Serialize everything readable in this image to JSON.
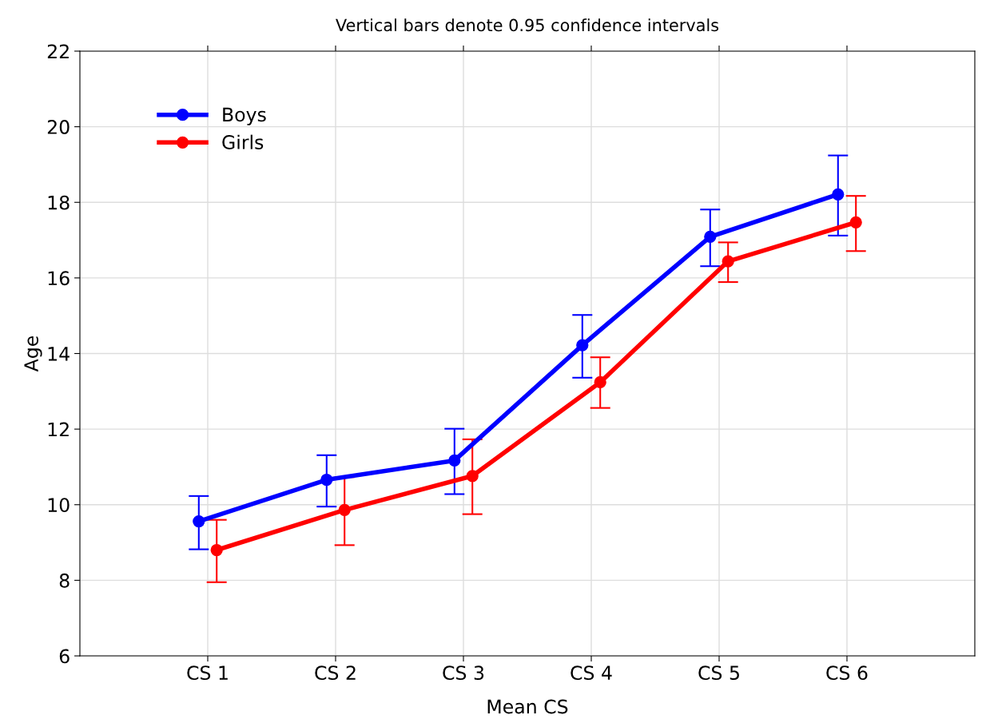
{
  "chart_data": {
    "type": "line",
    "title": "Vertical bars denote 0.95 confidence intervals",
    "xlabel": "Mean CS",
    "ylabel": "Age",
    "categories": [
      "CS 1",
      "CS 2",
      "CS 3",
      "CS 4",
      "CS 5",
      "CS 6"
    ],
    "series": [
      {
        "name": "Boys",
        "color": "#0000ff",
        "values": [
          9.56,
          10.66,
          11.17,
          14.22,
          17.09,
          18.21
        ],
        "errors": [
          [
            8.82,
            10.23
          ],
          [
            9.95,
            11.31
          ],
          [
            10.28,
            12.01
          ],
          [
            13.36,
            15.02
          ],
          [
            16.31,
            17.81
          ],
          [
            17.12,
            19.24
          ]
        ]
      },
      {
        "name": "Girls",
        "color": "#ff0000",
        "values": [
          8.8,
          9.86,
          10.76,
          13.24,
          16.44,
          17.47
        ],
        "errors": [
          [
            7.95,
            9.6
          ],
          [
            8.93,
            10.73
          ],
          [
            9.75,
            11.73
          ],
          [
            12.56,
            13.9
          ],
          [
            15.89,
            16.94
          ],
          [
            16.71,
            18.17
          ]
        ]
      }
    ],
    "ylim": [
      6,
      22
    ],
    "yticks": [
      6,
      8,
      10,
      12,
      14,
      16,
      18,
      20,
      22
    ],
    "grid": true,
    "legend": "top left",
    "marker": "circle",
    "line_style": "solid"
  }
}
